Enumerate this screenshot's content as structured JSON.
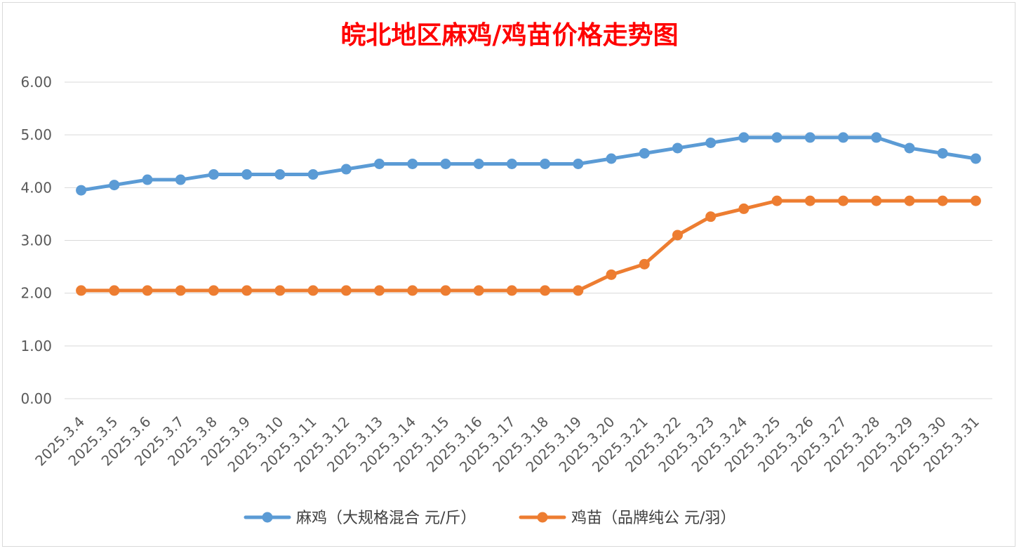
{
  "chart_data": {
    "type": "line",
    "title": "皖北地区麻鸡/鸡苗价格走势图",
    "categories": [
      "2025.3.4",
      "2025.3.5",
      "2025.3.6",
      "2025.3.7",
      "2025.3.8",
      "2025.3.9",
      "2025.3.10",
      "2025.3.11",
      "2025.3.12",
      "2025.3.13",
      "2025.3.14",
      "2025.3.15",
      "2025.3.16",
      "2025.3.17",
      "2025.3.18",
      "2025.3.19",
      "2025.3.20",
      "2025.3.21",
      "2025.3.22",
      "2025.3.23",
      "2025.3.24",
      "2025.3.25",
      "2025.3.26",
      "2025.3.27",
      "2025.3.28",
      "2025.3.29",
      "2025.3.30",
      "2025.3.31"
    ],
    "series": [
      {
        "name": "麻鸡（大规格混合 元/斤）",
        "color": "#5b9bd5",
        "values": [
          3.95,
          4.05,
          4.15,
          4.15,
          4.25,
          4.25,
          4.25,
          4.25,
          4.35,
          4.45,
          4.45,
          4.45,
          4.45,
          4.45,
          4.45,
          4.45,
          4.55,
          4.65,
          4.75,
          4.85,
          4.95,
          4.95,
          4.95,
          4.95,
          4.95,
          4.75,
          4.65,
          4.55
        ]
      },
      {
        "name": "鸡苗（品牌纯公 元/羽）",
        "color": "#ed7d31",
        "values": [
          2.05,
          2.05,
          2.05,
          2.05,
          2.05,
          2.05,
          2.05,
          2.05,
          2.05,
          2.05,
          2.05,
          2.05,
          2.05,
          2.05,
          2.05,
          2.05,
          2.35,
          2.55,
          3.1,
          3.45,
          3.6,
          3.75,
          3.75,
          3.75,
          3.75,
          3.75,
          3.75,
          3.75
        ]
      }
    ],
    "y_ticks": [
      "0.00",
      "1.00",
      "2.00",
      "3.00",
      "4.00",
      "5.00",
      "6.00"
    ],
    "ylim": [
      0,
      6
    ],
    "grid": true,
    "legend_position": "bottom",
    "xlabel": "",
    "ylabel": ""
  }
}
